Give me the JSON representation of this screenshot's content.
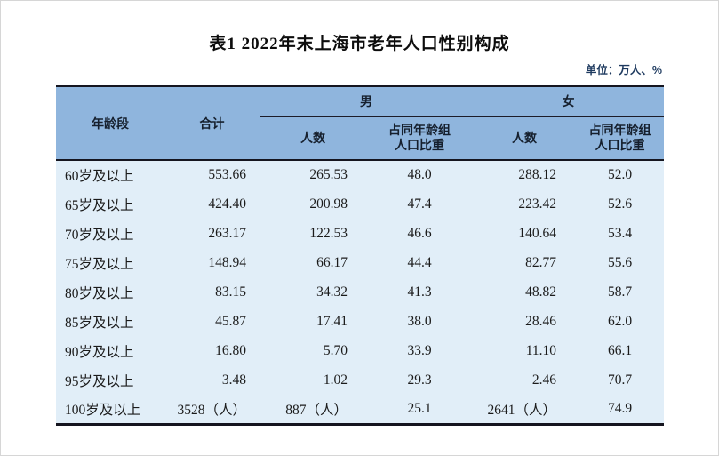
{
  "page": {
    "title": "表1  2022年末上海市老年人口性别构成",
    "unit_note": "单位：万人、%"
  },
  "table": {
    "header": {
      "age_group": "年龄段",
      "total": "合计",
      "male": "男",
      "female": "女",
      "count": "人数",
      "share_line1": "占同年龄组",
      "share_line2": "人口比重"
    },
    "rows": [
      {
        "age": "60岁及以上",
        "total": "553.66",
        "m_count": "265.53",
        "m_share": "48.0",
        "f_count": "288.12",
        "f_share": "52.0"
      },
      {
        "age": "65岁及以上",
        "total": "424.40",
        "m_count": "200.98",
        "m_share": "47.4",
        "f_count": "223.42",
        "f_share": "52.6"
      },
      {
        "age": "70岁及以上",
        "total": "263.17",
        "m_count": "122.53",
        "m_share": "46.6",
        "f_count": "140.64",
        "f_share": "53.4"
      },
      {
        "age": "75岁及以上",
        "total": "148.94",
        "m_count": "66.17",
        "m_share": "44.4",
        "f_count": "82.77",
        "f_share": "55.6"
      },
      {
        "age": "80岁及以上",
        "total": "83.15",
        "m_count": "34.32",
        "m_share": "41.3",
        "f_count": "48.82",
        "f_share": "58.7"
      },
      {
        "age": "85岁及以上",
        "total": "45.87",
        "m_count": "17.41",
        "m_share": "38.0",
        "f_count": "28.46",
        "f_share": "62.0"
      },
      {
        "age": "90岁及以上",
        "total": "16.80",
        "m_count": "5.70",
        "m_share": "33.9",
        "f_count": "11.10",
        "f_share": "66.1"
      },
      {
        "age": "95岁及以上",
        "total": "3.48",
        "m_count": "1.02",
        "m_share": "29.3",
        "f_count": "2.46",
        "f_share": "70.7"
      },
      {
        "age": "100岁及以上",
        "total": "3528（人）",
        "m_count": "887（人）",
        "m_share": "25.1",
        "f_count": "2641（人）",
        "f_share": "74.9"
      }
    ],
    "colors": {
      "header_bg": "#8fb5dd",
      "body_bg": "#e1eef8",
      "border_dark": "#15151f",
      "unit_text": "#1e3a5f"
    }
  }
}
